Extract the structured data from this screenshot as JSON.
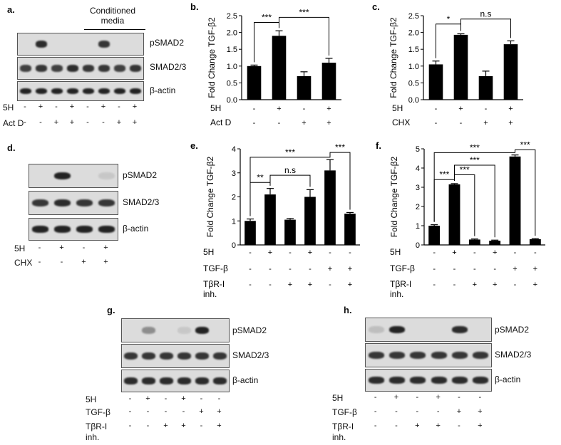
{
  "colors": {
    "bar": "#000000",
    "blot_background": "#dcdcdc",
    "band": "#1a1a1a"
  },
  "sign_plus": "+",
  "sign_minus": "-",
  "panel_a": {
    "label": "a.",
    "conditioned_media": "Conditioned media",
    "blots": [
      "pSMAD2",
      "SMAD2/3",
      "β-actin"
    ],
    "band_levels": {
      "pSMAD2": [
        0,
        0.9,
        0,
        0,
        0,
        0.85,
        0,
        0
      ],
      "SMAD2/3": [
        0.8,
        0.85,
        0.8,
        0.9,
        0.85,
        0.85,
        0.8,
        0.85
      ],
      "β-actin": [
        0.95,
        0.95,
        0.95,
        0.95,
        0.95,
        0.95,
        0.95,
        0.95
      ]
    },
    "treatments": [
      {
        "name": "5H",
        "signs": [
          "-",
          "+",
          "-",
          "+",
          "-",
          "+",
          "-",
          "+"
        ]
      },
      {
        "name": "Act D",
        "signs": [
          "-",
          "-",
          "+",
          "+",
          "-",
          "-",
          "+",
          "+"
        ]
      }
    ]
  },
  "panel_d": {
    "label": "d.",
    "blots": [
      "pSMAD2",
      "SMAD2/3",
      "β-actin"
    ],
    "band_levels": {
      "pSMAD2": [
        0,
        0.95,
        0,
        0.1
      ],
      "SMAD2/3": [
        0.85,
        0.9,
        0.85,
        0.85
      ],
      "β-actin": [
        0.95,
        0.95,
        0.95,
        0.95
      ]
    },
    "treatments": [
      {
        "name": "5H",
        "signs": [
          "-",
          "+",
          "-",
          "+"
        ]
      },
      {
        "name": "CHX",
        "signs": [
          "-",
          "-",
          "+",
          "+"
        ]
      }
    ]
  },
  "panel_g": {
    "label": "g.",
    "blots": [
      "pSMAD2",
      "SMAD2/3",
      "β-actin"
    ],
    "band_levels": {
      "pSMAD2": [
        0,
        0.4,
        0,
        0.1,
        0.95,
        0
      ],
      "SMAD2/3": [
        0.85,
        0.85,
        0.85,
        0.85,
        0.85,
        0.85
      ],
      "β-actin": [
        0.9,
        0.9,
        0.9,
        0.9,
        0.9,
        0.9
      ]
    },
    "treatments": [
      {
        "name": "5H",
        "signs": [
          "-",
          "+",
          "-",
          "+",
          "-",
          "-"
        ]
      },
      {
        "name": "TGF-β",
        "signs": [
          "-",
          "-",
          "-",
          "-",
          "+",
          "+"
        ]
      },
      {
        "name": "TβR-I",
        "name2": "inh.",
        "signs": [
          "-",
          "-",
          "+",
          "+",
          "-",
          "+"
        ]
      }
    ]
  },
  "panel_h": {
    "label": "h.",
    "blots": [
      "pSMAD2",
      "SMAD2/3",
      "β-actin"
    ],
    "band_levels": {
      "pSMAD2": [
        0.15,
        0.95,
        0,
        0,
        0.9,
        0
      ],
      "SMAD2/3": [
        0.85,
        0.85,
        0.85,
        0.85,
        0.85,
        0.85
      ],
      "β-actin": [
        0.9,
        0.9,
        0.9,
        0.9,
        0.9,
        0.9
      ]
    },
    "treatments": [
      {
        "name": "5H",
        "signs": [
          "-",
          "+",
          "-",
          "+",
          "-",
          "-"
        ]
      },
      {
        "name": "TGF-β",
        "signs": [
          "-",
          "-",
          "-",
          "-",
          "+",
          "+"
        ]
      },
      {
        "name": "TβR-I",
        "name2": "inh.",
        "signs": [
          "-",
          "-",
          "+",
          "+",
          "-",
          "+"
        ]
      }
    ]
  },
  "chart_data": [
    {
      "id": "b",
      "label": "b.",
      "type": "bar",
      "ylabel": "Fold Change TGF-β2",
      "ylim": [
        0,
        2.5
      ],
      "yticks": [
        "0.0",
        "0.5",
        "1.0",
        "1.5",
        "2.0",
        "2.5"
      ],
      "values": [
        1.0,
        1.9,
        0.7,
        1.1
      ],
      "errors": [
        0.03,
        0.15,
        0.13,
        0.13
      ],
      "treatments": [
        {
          "name": "5H",
          "signs": [
            "-",
            "+",
            "-",
            "+"
          ]
        },
        {
          "name": "Act D",
          "signs": [
            "-",
            "-",
            "+",
            "+"
          ]
        }
      ],
      "significance": [
        {
          "from": 0,
          "to": 1,
          "text": "***",
          "level": 2.3
        },
        {
          "from": 1,
          "to": 3,
          "text": "***",
          "level": 2.45
        }
      ]
    },
    {
      "id": "c",
      "label": "c.",
      "type": "bar",
      "ylabel": "Fold Change TGF-β2",
      "ylim": [
        0,
        2.5
      ],
      "yticks": [
        "0.0",
        "0.5",
        "1.0",
        "1.5",
        "2.0",
        "2.5"
      ],
      "values": [
        1.05,
        1.93,
        0.7,
        1.65
      ],
      "errors": [
        0.1,
        0.03,
        0.15,
        0.1
      ],
      "treatments": [
        {
          "name": "5H",
          "signs": [
            "-",
            "+",
            "-",
            "+"
          ]
        },
        {
          "name": "CHX",
          "signs": [
            "-",
            "-",
            "+",
            "+"
          ]
        }
      ],
      "significance": [
        {
          "from": 0,
          "to": 1,
          "text": "*",
          "level": 2.25
        },
        {
          "from": 1,
          "to": 3,
          "text": "n.s",
          "level": 2.4
        }
      ]
    },
    {
      "id": "e",
      "label": "e.",
      "type": "bar",
      "ylabel": "Fold Change  TGF-β2",
      "ylim": [
        0,
        4
      ],
      "yticks": [
        "0",
        "1",
        "2",
        "3",
        "4"
      ],
      "values": [
        1.0,
        2.1,
        1.05,
        2.0,
        3.1,
        1.3
      ],
      "errors": [
        0.08,
        0.25,
        0.05,
        0.3,
        0.45,
        0.05
      ],
      "treatments": [
        {
          "name": "5H",
          "signs": [
            "-",
            "+",
            "-",
            "+",
            "-",
            "-"
          ]
        },
        {
          "name": "TGF-β",
          "signs": [
            "-",
            "-",
            "-",
            "-",
            "+",
            "+"
          ]
        },
        {
          "name": "TβR-I",
          "name2": "inh.",
          "signs": [
            "-",
            "-",
            "+",
            "+",
            "-",
            "+"
          ]
        }
      ],
      "significance": [
        {
          "from": 0,
          "to": 1,
          "text": "**",
          "level": 2.6
        },
        {
          "from": 1,
          "to": 3,
          "text": "n.s",
          "level": 2.9
        },
        {
          "from": 0,
          "to": 4,
          "text": "***",
          "level": 3.65
        },
        {
          "from": 4,
          "to": 5,
          "text": "***",
          "level": 3.85
        }
      ]
    },
    {
      "id": "f",
      "label": "f.",
      "type": "bar",
      "ylabel": "Fold Change  TGF-β2",
      "ylim": [
        0,
        5
      ],
      "yticks": [
        "0",
        "1",
        "2",
        "3",
        "4",
        "5"
      ],
      "values": [
        1.0,
        3.15,
        0.28,
        0.22,
        4.6,
        0.3
      ],
      "errors": [
        0.05,
        0.04,
        0.03,
        0.03,
        0.08,
        0.03
      ],
      "treatments": [
        {
          "name": "5H",
          "signs": [
            "-",
            "+",
            "-",
            "+",
            "-",
            "-"
          ]
        },
        {
          "name": "TGF-β",
          "signs": [
            "-",
            "-",
            "-",
            "-",
            "+",
            "+"
          ]
        },
        {
          "name": "TβR-I",
          "name2": "inh.",
          "signs": [
            "-",
            "-",
            "+",
            "+",
            "-",
            "+"
          ]
        }
      ],
      "significance": [
        {
          "from": 0,
          "to": 1,
          "text": "***",
          "level": 3.4
        },
        {
          "from": 1,
          "to": 2,
          "text": "***",
          "level": 3.65
        },
        {
          "from": 1,
          "to": 3,
          "text": "***",
          "level": 4.15
        },
        {
          "from": 0,
          "to": 4,
          "text": "***",
          "level": 4.8
        },
        {
          "from": 4,
          "to": 5,
          "text": "***",
          "level": 4.95
        }
      ]
    }
  ]
}
